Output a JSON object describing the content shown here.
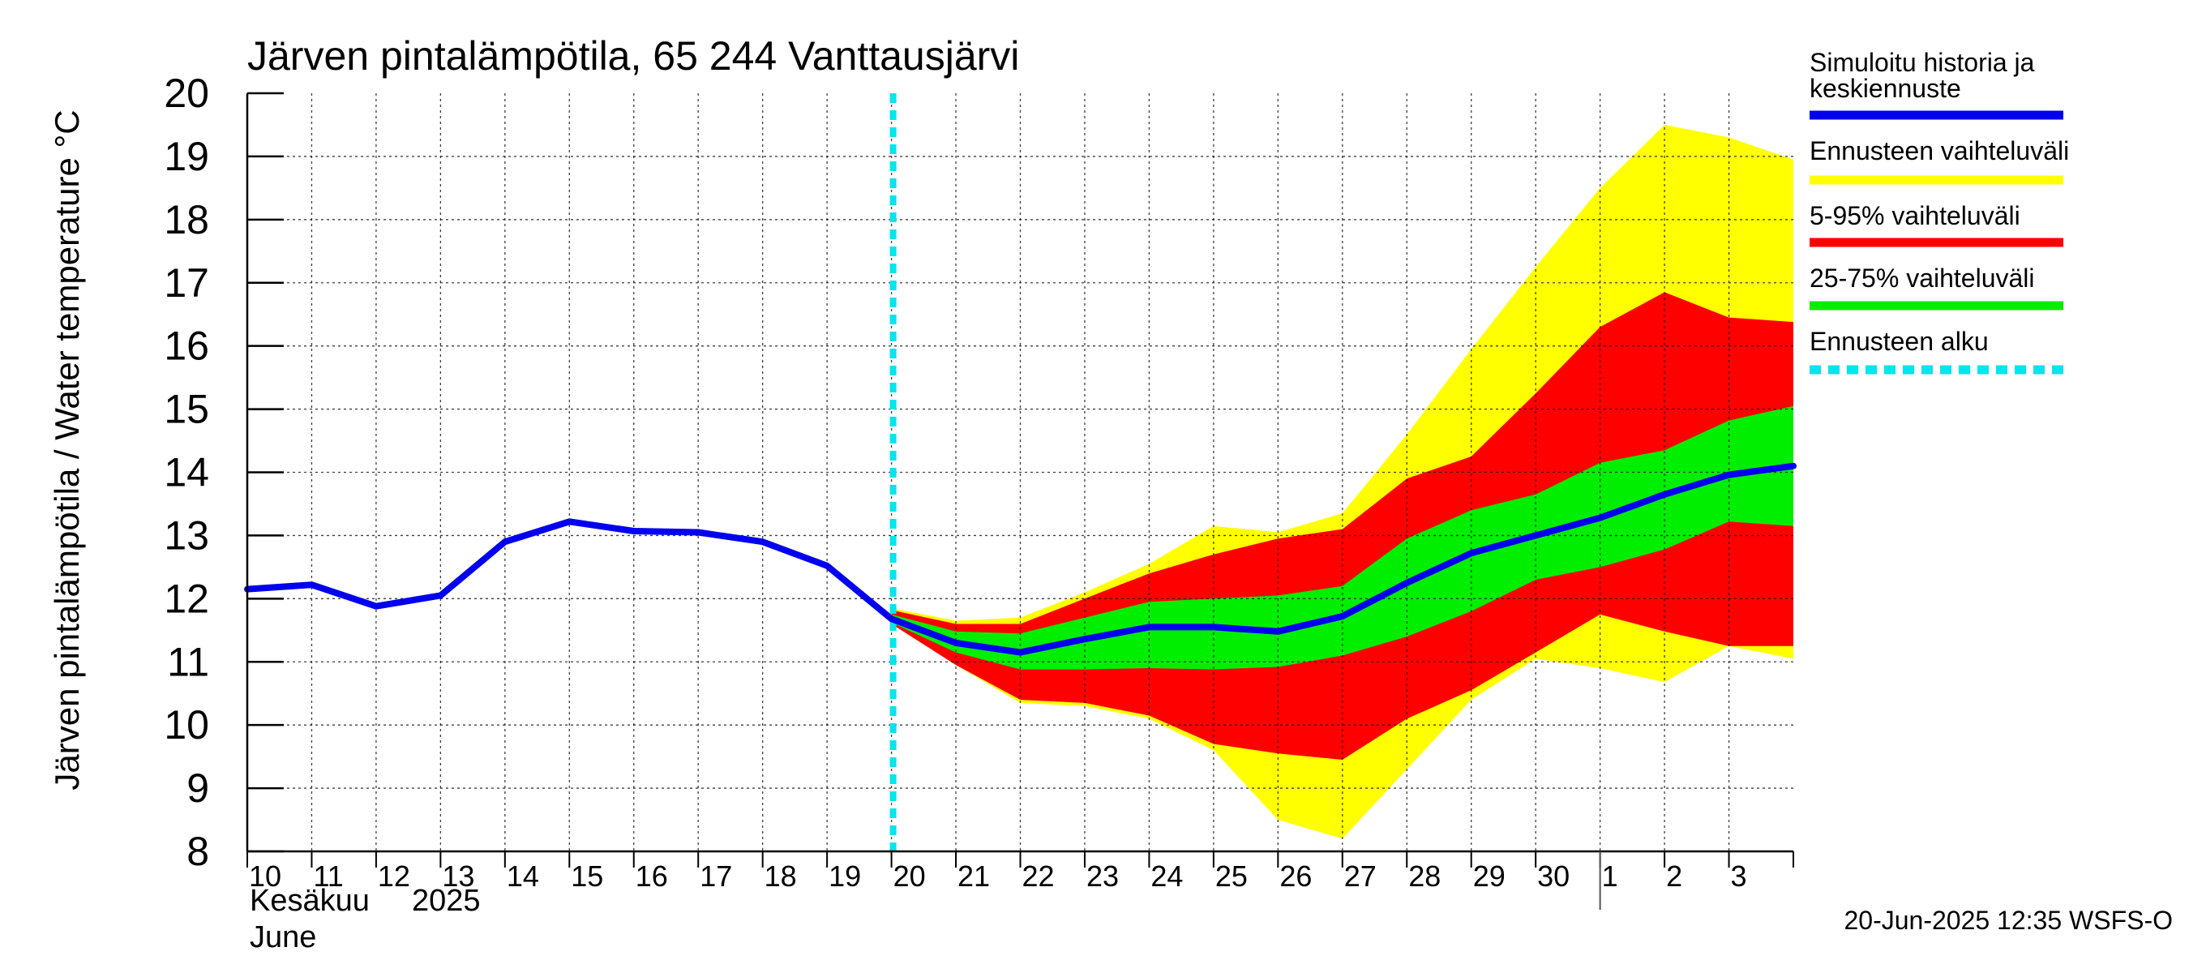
{
  "chart_data": {
    "type": "area",
    "title": "Järven pintalämpötila, 65 244 Vanttausjärvi",
    "ylabel": "Järven pintalämpötila / Water temperature °C",
    "xlabel_month_fi": "Kesäkuu",
    "xlabel_year": "2025",
    "xlabel_month_en": "June",
    "footer": "20-Jun-2025 12:35 WSFS-O",
    "ylim": [
      8,
      20
    ],
    "yticks": [
      8,
      9,
      10,
      11,
      12,
      13,
      14,
      15,
      16,
      17,
      18,
      19,
      20
    ],
    "xlim": [
      0,
      24
    ],
    "x_tick_labels": [
      "10",
      "11",
      "12",
      "13",
      "14",
      "15",
      "16",
      "17",
      "18",
      "19",
      "20",
      "21",
      "22",
      "23",
      "24",
      "25",
      "26",
      "27",
      "28",
      "29",
      "30",
      "1",
      "2",
      "3"
    ],
    "month_boundary_day_index": 21,
    "forecast_start_day_index": 10,
    "series": [
      {
        "name": "Simuloitu historia ja keskiennuste",
        "color": "#0000ee",
        "x": [
          0,
          1,
          2,
          3,
          4,
          5,
          6,
          7,
          8,
          9,
          10,
          11,
          12,
          13,
          14,
          15,
          16,
          17,
          18,
          19,
          20,
          21,
          22,
          23,
          24
        ],
        "values": [
          12.15,
          12.22,
          11.88,
          12.05,
          12.9,
          13.22,
          13.07,
          13.05,
          12.9,
          12.52,
          11.68,
          11.3,
          11.15,
          11.36,
          11.55,
          11.55,
          11.48,
          11.72,
          12.25,
          12.72,
          13.0,
          13.28,
          13.65,
          13.96,
          14.1
        ]
      }
    ],
    "bands": [
      {
        "name": "Ennusteen vaihteluväli",
        "color": "#ffff00",
        "x": [
          10,
          11,
          12,
          13,
          14,
          15,
          16,
          17,
          18,
          19,
          20,
          21,
          22,
          23,
          24
        ],
        "low": [
          11.6,
          10.95,
          10.35,
          10.3,
          10.1,
          9.6,
          8.5,
          8.2,
          9.3,
          10.4,
          11.05,
          10.9,
          10.68,
          11.25,
          11.05
        ],
        "high": [
          11.85,
          11.65,
          11.7,
          12.1,
          12.55,
          13.15,
          13.05,
          13.35,
          14.6,
          15.95,
          17.25,
          18.5,
          19.5,
          19.3,
          18.95
        ]
      },
      {
        "name": "5-95% vaihteluväli",
        "color": "#ff0000",
        "x": [
          10,
          11,
          12,
          13,
          14,
          15,
          16,
          17,
          18,
          19,
          20,
          21,
          22,
          23,
          24
        ],
        "low": [
          11.6,
          10.95,
          10.4,
          10.35,
          10.15,
          9.7,
          9.55,
          9.45,
          10.1,
          10.55,
          11.15,
          11.75,
          11.48,
          11.25,
          11.25
        ],
        "high": [
          11.82,
          11.6,
          11.6,
          12.0,
          12.4,
          12.7,
          12.95,
          13.1,
          13.9,
          14.25,
          15.25,
          16.3,
          16.85,
          16.45,
          16.38
        ]
      },
      {
        "name": "25-75% vaihteluväli",
        "color": "#00ee00",
        "x": [
          10,
          11,
          12,
          13,
          14,
          15,
          16,
          17,
          18,
          19,
          20,
          21,
          22,
          23,
          24
        ],
        "low": [
          11.62,
          11.15,
          10.88,
          10.88,
          10.9,
          10.88,
          10.92,
          11.1,
          11.4,
          11.8,
          12.3,
          12.5,
          12.78,
          13.22,
          13.15
        ],
        "high": [
          11.75,
          11.48,
          11.45,
          11.7,
          11.95,
          12.0,
          12.05,
          12.2,
          12.95,
          13.4,
          13.65,
          14.15,
          14.35,
          14.82,
          15.05
        ]
      }
    ],
    "legend": [
      {
        "label": "Simuloitu historia ja",
        "label2": "keskiennuste",
        "color": "#0000ee",
        "style": "solid"
      },
      {
        "label": "Ennusteen vaihteluväli",
        "color": "#ffff00",
        "style": "solid"
      },
      {
        "label": "5-95% vaihteluväli",
        "color": "#ff0000",
        "style": "solid"
      },
      {
        "label": "25-75% vaihteluväli",
        "color": "#00ee00",
        "style": "solid"
      },
      {
        "label": "Ennusteen alku",
        "color": "#00e5ee",
        "style": "dashed"
      }
    ]
  }
}
